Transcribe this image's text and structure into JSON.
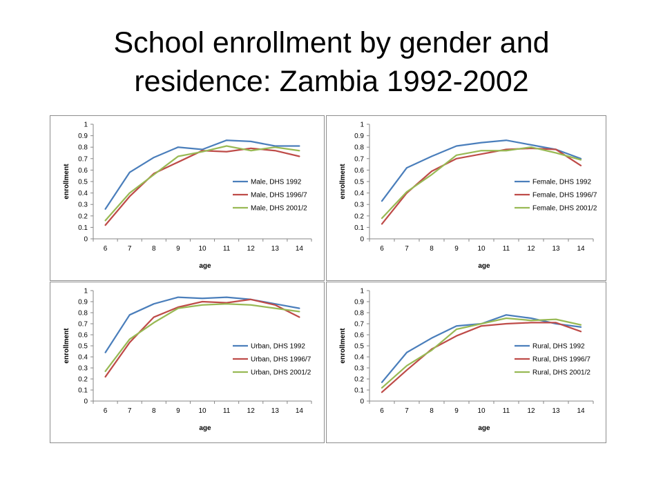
{
  "slide": {
    "title_line1": "School enrollment by gender and",
    "title_line2": "residence: Zambia 1992-2002"
  },
  "chart_data": [
    {
      "type": "line",
      "x": [
        6,
        7,
        8,
        9,
        10,
        11,
        12,
        13,
        14
      ],
      "xlabel": "age",
      "ylabel": "enrollment",
      "ylim": [
        0,
        1
      ],
      "yticks": [
        0,
        0.1,
        0.2,
        0.3,
        0.4,
        0.5,
        0.6,
        0.7,
        0.8,
        0.9,
        1
      ],
      "grid": false,
      "legend": "right",
      "series": [
        {
          "name": "Male, DHS 1992",
          "color": "#4a7ebb",
          "values": [
            0.26,
            0.58,
            0.71,
            0.8,
            0.78,
            0.86,
            0.85,
            0.81,
            0.81
          ]
        },
        {
          "name": "Male, DHS 1996/7",
          "color": "#be4b48",
          "values": [
            0.12,
            0.37,
            0.57,
            0.67,
            0.77,
            0.76,
            0.79,
            0.77,
            0.72
          ]
        },
        {
          "name": "Male, DHS 2001/2",
          "color": "#98b954",
          "values": [
            0.16,
            0.4,
            0.56,
            0.72,
            0.76,
            0.81,
            0.77,
            0.8,
            0.77
          ]
        }
      ]
    },
    {
      "type": "line",
      "x": [
        6,
        7,
        8,
        9,
        10,
        11,
        12,
        13,
        14
      ],
      "xlabel": "age",
      "ylabel": "enrollment",
      "ylim": [
        0,
        1
      ],
      "yticks": [
        0,
        0.1,
        0.2,
        0.3,
        0.4,
        0.5,
        0.6,
        0.7,
        0.8,
        0.9,
        1
      ],
      "grid": false,
      "legend": "right",
      "series": [
        {
          "name": "Female, DHS 1992",
          "color": "#4a7ebb",
          "values": [
            0.33,
            0.62,
            0.72,
            0.81,
            0.84,
            0.86,
            0.82,
            0.78,
            0.7
          ]
        },
        {
          "name": "Female, DHS 1996/7",
          "color": "#be4b48",
          "values": [
            0.13,
            0.4,
            0.59,
            0.7,
            0.74,
            0.78,
            0.79,
            0.78,
            0.64
          ]
        },
        {
          "name": "Female, DHS 2001/2",
          "color": "#98b954",
          "values": [
            0.18,
            0.41,
            0.56,
            0.73,
            0.77,
            0.77,
            0.8,
            0.75,
            0.69
          ]
        }
      ]
    },
    {
      "type": "line",
      "x": [
        6,
        7,
        8,
        9,
        10,
        11,
        12,
        13,
        14
      ],
      "xlabel": "age",
      "ylabel": "enrollment",
      "ylim": [
        0,
        1
      ],
      "yticks": [
        0,
        0.1,
        0.2,
        0.3,
        0.4,
        0.5,
        0.6,
        0.7,
        0.8,
        0.9,
        1
      ],
      "grid": false,
      "legend": "right",
      "series": [
        {
          "name": "Urban, DHS 1992",
          "color": "#4a7ebb",
          "values": [
            0.44,
            0.78,
            0.88,
            0.94,
            0.93,
            0.94,
            0.92,
            0.88,
            0.84
          ]
        },
        {
          "name": "Urban, DHS 1996/7",
          "color": "#be4b48",
          "values": [
            0.22,
            0.53,
            0.76,
            0.85,
            0.9,
            0.89,
            0.92,
            0.87,
            0.76
          ]
        },
        {
          "name": "Urban, DHS 2001/2",
          "color": "#98b954",
          "values": [
            0.27,
            0.56,
            0.71,
            0.84,
            0.87,
            0.88,
            0.87,
            0.84,
            0.81
          ]
        }
      ]
    },
    {
      "type": "line",
      "x": [
        6,
        7,
        8,
        9,
        10,
        11,
        12,
        13,
        14
      ],
      "xlabel": "age",
      "ylabel": "enrollment",
      "ylim": [
        0,
        1
      ],
      "yticks": [
        0,
        0.1,
        0.2,
        0.3,
        0.4,
        0.5,
        0.6,
        0.7,
        0.8,
        0.9,
        1
      ],
      "grid": false,
      "legend": "right",
      "series": [
        {
          "name": "Rural, DHS 1992",
          "color": "#4a7ebb",
          "values": [
            0.17,
            0.44,
            0.57,
            0.68,
            0.7,
            0.78,
            0.75,
            0.7,
            0.67
          ]
        },
        {
          "name": "Rural, DHS 1996/7",
          "color": "#be4b48",
          "values": [
            0.08,
            0.28,
            0.47,
            0.59,
            0.68,
            0.7,
            0.71,
            0.71,
            0.63
          ]
        },
        {
          "name": "Rural, DHS 2001/2",
          "color": "#98b954",
          "values": [
            0.12,
            0.32,
            0.46,
            0.65,
            0.7,
            0.75,
            0.73,
            0.74,
            0.69
          ]
        }
      ]
    }
  ]
}
